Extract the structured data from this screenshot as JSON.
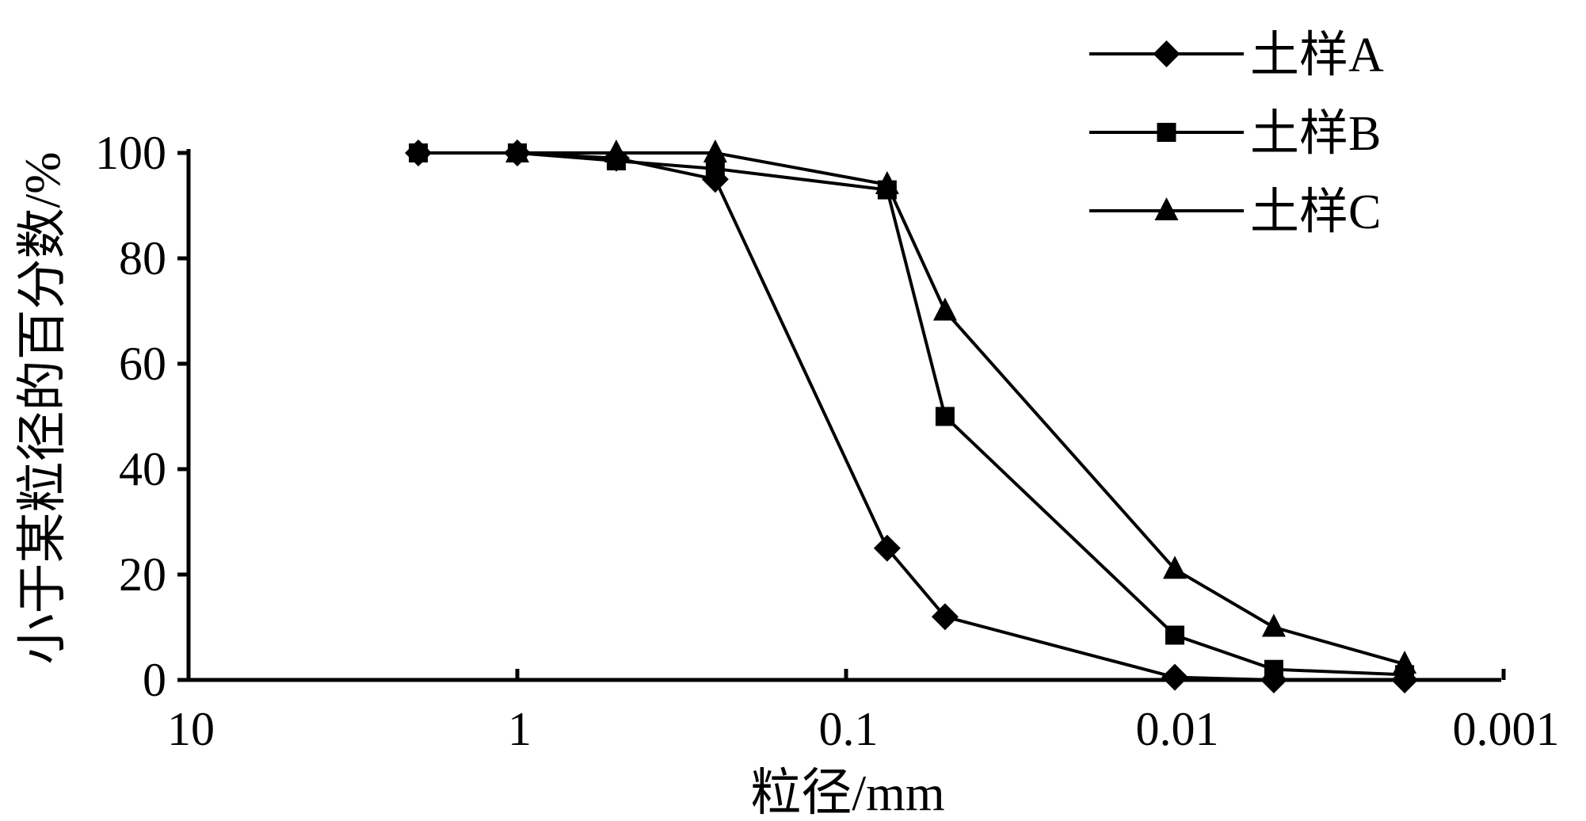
{
  "chart_data": {
    "type": "line",
    "xscale": "log",
    "x_reversed": true,
    "xlim": [
      10,
      0.001
    ],
    "ylim": [
      0,
      100
    ],
    "xlabel": "粒径/mm",
    "ylabel": "小于某粒径的百分数/%",
    "xticks": [
      10,
      1,
      0.1,
      0.01,
      0.001
    ],
    "xtick_labels": [
      "10",
      "1",
      "0.1",
      "0.01",
      "0.001"
    ],
    "yticks": [
      0,
      20,
      40,
      60,
      80,
      100
    ],
    "ytick_labels": [
      "0",
      "20",
      "40",
      "60",
      "80",
      "100"
    ],
    "grid": false,
    "legend_position": "top-right",
    "series": [
      {
        "name": "土样A",
        "marker": "diamond",
        "x": [
          2,
          1,
          0.5,
          0.25,
          0.075,
          0.05,
          0.01,
          0.005,
          0.002
        ],
        "y": [
          100,
          100,
          99,
          95,
          25,
          12,
          0.5,
          0,
          0
        ]
      },
      {
        "name": "土样B",
        "marker": "square",
        "x": [
          2,
          1,
          0.5,
          0.25,
          0.075,
          0.05,
          0.01,
          0.005,
          0.002
        ],
        "y": [
          100,
          100,
          98.5,
          97,
          93,
          50,
          8.5,
          2,
          1
        ]
      },
      {
        "name": "土样C",
        "marker": "triangle",
        "x": [
          1,
          0.5,
          0.25,
          0.075,
          0.05,
          0.01,
          0.005,
          0.002
        ],
        "y": [
          100,
          100,
          100,
          94,
          70,
          21,
          10,
          3
        ]
      }
    ]
  }
}
